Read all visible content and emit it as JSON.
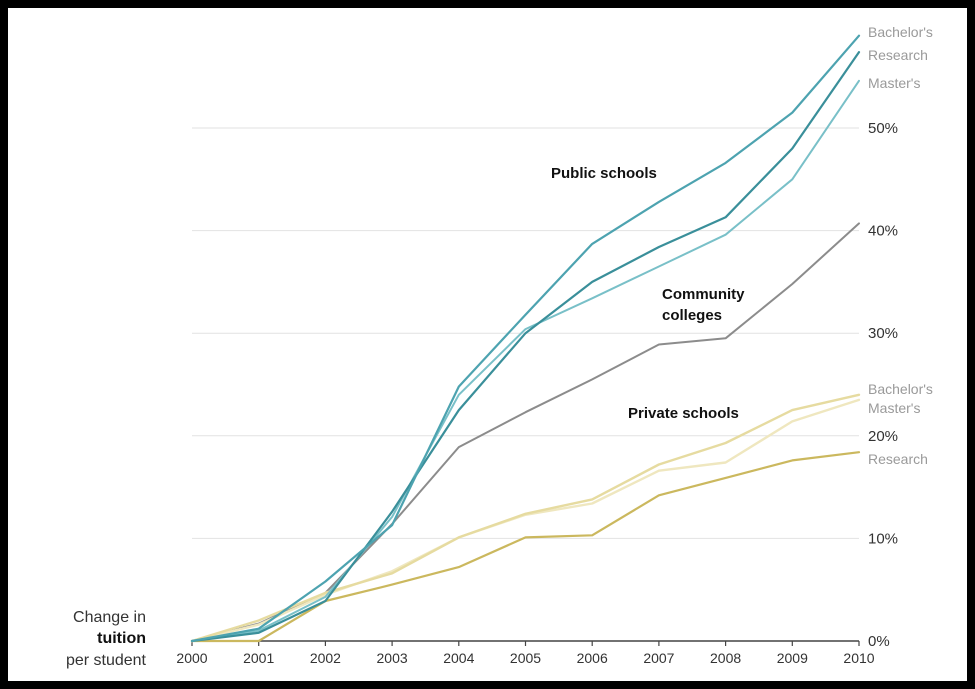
{
  "chart_data": {
    "type": "line",
    "x": [
      2000,
      2001,
      2002,
      2003,
      2004,
      2005,
      2006,
      2007,
      2008,
      2009,
      2010
    ],
    "ylim": [
      0,
      60
    ],
    "yticks": [
      0,
      10,
      20,
      30,
      40,
      50
    ],
    "ytick_labels": [
      "0%",
      "10%",
      "20%",
      "30%",
      "40%",
      "50%"
    ],
    "grid": true,
    "ylabel": {
      "line1": "Change in",
      "line2": "tuition",
      "line3": "per student"
    },
    "groups": {
      "public": "Public schools",
      "community_line1": "Community",
      "community_line2": "colleges",
      "private": "Private schools"
    },
    "series": [
      {
        "name": "Bachelor's",
        "group": "public",
        "color": "#4da3b0",
        "width": 2.2,
        "values": [
          0,
          1.2,
          5.8,
          11.3,
          24.8,
          31.8,
          38.7,
          42.8,
          46.6,
          51.5,
          59.0
        ]
      },
      {
        "name": "Research",
        "group": "public",
        "color": "#3a8f9a",
        "width": 2.2,
        "values": [
          0,
          0.8,
          3.9,
          12.6,
          22.5,
          30.0,
          35.0,
          38.4,
          41.3,
          48.0,
          57.4
        ]
      },
      {
        "name": "Master's",
        "group": "public",
        "color": "#79c0c8",
        "width": 2.0,
        "values": [
          0,
          1.0,
          4.3,
          12.1,
          24.0,
          30.4,
          33.4,
          36.5,
          39.6,
          45.0,
          54.6
        ]
      },
      {
        "name": "",
        "group": "community",
        "color": "#8c8c8c",
        "width": 2.0,
        "values": [
          0,
          1.7,
          4.7,
          11.4,
          18.9,
          22.3,
          25.5,
          28.9,
          29.5,
          34.8,
          40.7
        ]
      },
      {
        "name": "Bachelor's",
        "group": "private",
        "color": "#e6dba0",
        "width": 2.4,
        "values": [
          0,
          2.0,
          4.7,
          6.6,
          10.1,
          12.4,
          13.8,
          17.2,
          19.3,
          22.5,
          24.0
        ]
      },
      {
        "name": "Master's",
        "group": "private",
        "color": "#efe7bf",
        "width": 2.4,
        "values": [
          0,
          1.6,
          4.5,
          6.8,
          10.1,
          12.3,
          13.4,
          16.6,
          17.4,
          21.4,
          23.5
        ]
      },
      {
        "name": "Research",
        "group": "private",
        "color": "#cbb85e",
        "width": 2.2,
        "values": [
          0,
          0,
          3.9,
          5.5,
          7.2,
          10.1,
          10.3,
          14.2,
          15.9,
          17.6,
          18.4
        ]
      }
    ]
  }
}
